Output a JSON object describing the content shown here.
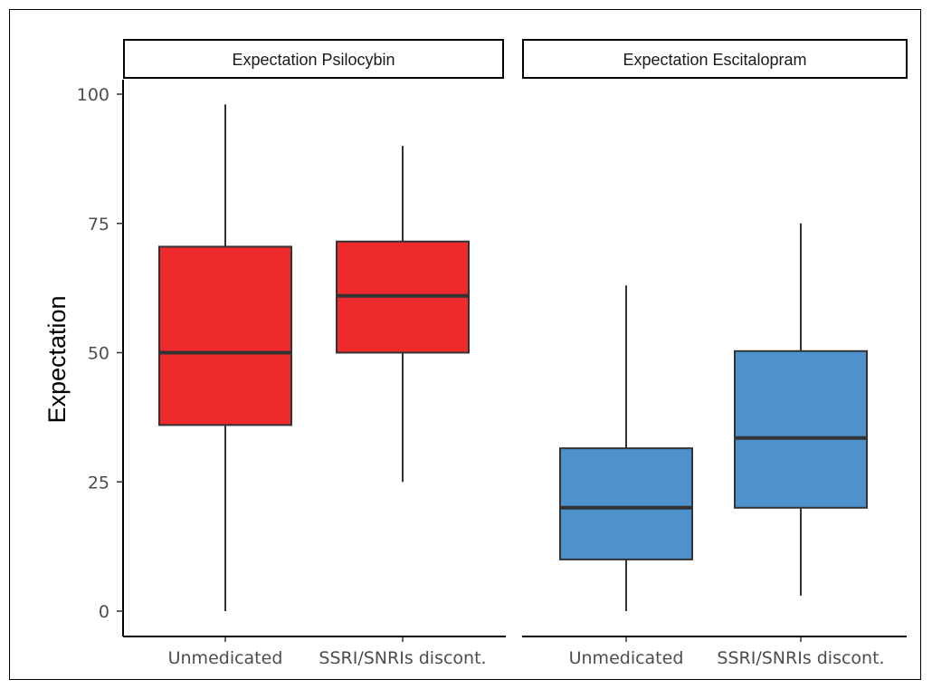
{
  "chart_data": {
    "type": "box",
    "ylabel": "Expectation",
    "xlabel": "",
    "ylim": [
      0,
      100
    ],
    "yticks": [
      0,
      25,
      50,
      75,
      100
    ],
    "categories": [
      "Unmedicated",
      "SSRI/SNRIs discont."
    ],
    "panels": [
      {
        "title": "Expectation Psilocybin",
        "color": "#ee2a2d",
        "boxes": [
          {
            "category": "Unmedicated",
            "min": 0,
            "q1": 36,
            "median": 50,
            "q3": 70.5,
            "max": 98
          },
          {
            "category": "SSRI/SNRIs discont.",
            "min": 25,
            "q1": 50,
            "median": 61,
            "q3": 71.5,
            "max": 90
          }
        ]
      },
      {
        "title": "Expectation Escitalopram",
        "color": "#4d92cd",
        "boxes": [
          {
            "category": "Unmedicated",
            "min": 0,
            "q1": 10,
            "median": 20,
            "q3": 31.5,
            "max": 63
          },
          {
            "category": "SSRI/SNRIs discont.",
            "min": 3,
            "q1": 20,
            "median": 33.5,
            "q3": 50.3,
            "max": 75
          }
        ]
      }
    ]
  }
}
